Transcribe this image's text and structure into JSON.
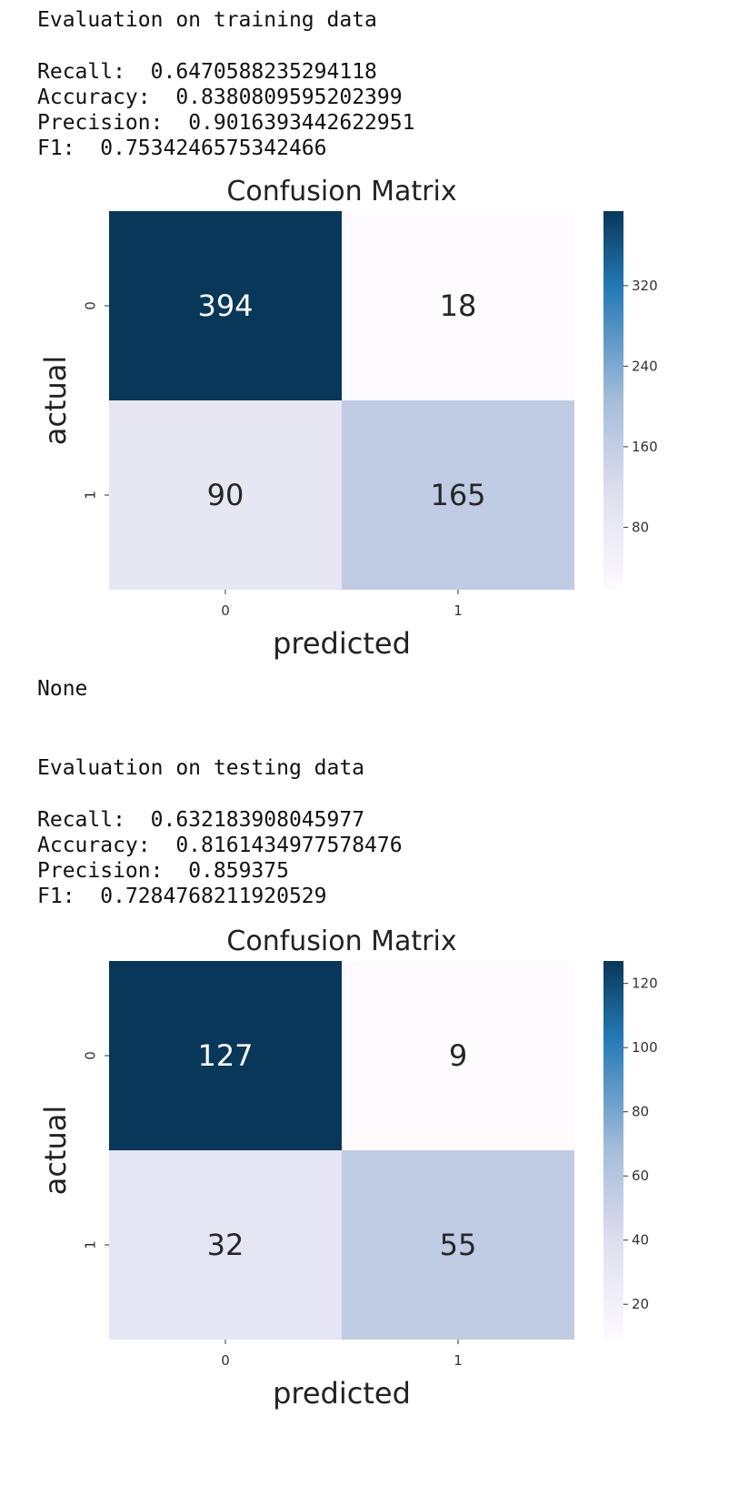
{
  "training": {
    "header": "Evaluation on training data",
    "metrics": [
      {
        "label": "Recall:",
        "value": "0.6470588235294118"
      },
      {
        "label": "Accuracy:",
        "value": "0.8380809595202399"
      },
      {
        "label": "Precision:",
        "value": "0.9016393442622951"
      },
      {
        "label": "F1:",
        "value": "0.7534246575342466"
      }
    ]
  },
  "none_output": "None",
  "testing": {
    "header": "Evaluation on testing data",
    "metrics": [
      {
        "label": "Recall:",
        "value": "0.632183908045977"
      },
      {
        "label": "Accuracy:",
        "value": "0.8161434977578476"
      },
      {
        "label": "Precision:",
        "value": "0.859375"
      },
      {
        "label": "F1:",
        "value": "0.7284768211920529"
      }
    ]
  },
  "colors": {
    "dark": "#08375a",
    "mid": "#2379b5",
    "light": "#a5bddb",
    "pale": "#e0dff0",
    "white": "#fdfbfe"
  },
  "chart_data": [
    {
      "type": "heatmap",
      "title": "Confusion Matrix",
      "xlabel": "predicted",
      "ylabel": "actual",
      "x_ticks": [
        "0",
        "1"
      ],
      "y_ticks": [
        "0",
        "1"
      ],
      "values": [
        [
          394,
          18
        ],
        [
          90,
          165
        ]
      ],
      "cell_labels": [
        [
          "394",
          "18"
        ],
        [
          "90",
          "165"
        ]
      ],
      "colorbar": {
        "min": 18,
        "max": 394,
        "ticks": [
          80,
          160,
          240,
          320
        ],
        "tick_labels": [
          "80",
          "160",
          "240",
          "320"
        ]
      }
    },
    {
      "type": "heatmap",
      "title": "Confusion Matrix",
      "xlabel": "predicted",
      "ylabel": "actual",
      "x_ticks": [
        "0",
        "1"
      ],
      "y_ticks": [
        "0",
        "1"
      ],
      "values": [
        [
          127,
          9
        ],
        [
          32,
          55
        ]
      ],
      "cell_labels": [
        [
          "127",
          "9"
        ],
        [
          "32",
          "55"
        ]
      ],
      "colorbar": {
        "min": 9,
        "max": 127,
        "ticks": [
          20,
          40,
          60,
          80,
          100,
          120
        ],
        "tick_labels": [
          "20",
          "40",
          "60",
          "80",
          "100",
          "120"
        ]
      }
    }
  ]
}
